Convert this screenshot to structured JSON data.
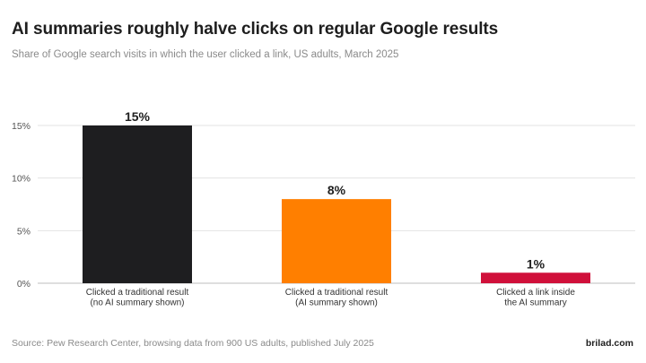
{
  "header": {
    "title": "AI summaries roughly halve clicks on regular Google results",
    "subtitle": "Share of Google search visits in which the user clicked a link, US adults, March 2025"
  },
  "footer": {
    "source": "Source: Pew Research Center, browsing data from 900 US adults, published July 2025",
    "brand": "brilad.com"
  },
  "chart_data": {
    "type": "bar",
    "title": "AI summaries roughly halve clicks on regular Google results",
    "subtitle": "Share of Google search visits in which the user clicked a link, US adults, March 2025",
    "xlabel": "",
    "ylabel": "",
    "categories": [
      [
        "Clicked a traditional result",
        "(no AI summary shown)"
      ],
      [
        "Clicked a traditional result",
        "(AI summary shown)"
      ],
      [
        "Clicked a link inside",
        "the AI summary"
      ]
    ],
    "values": [
      15,
      8,
      1
    ],
    "value_labels": [
      "15%",
      "8%",
      "1%"
    ],
    "colors": [
      "#1e1e20",
      "#ff7f00",
      "#d0103a"
    ],
    "ylim": [
      0,
      15
    ],
    "yticks": [
      0,
      5,
      10,
      15
    ],
    "ytick_labels": [
      "0%",
      "5%",
      "10%",
      "15%"
    ],
    "grid": true,
    "legend": "none"
  }
}
